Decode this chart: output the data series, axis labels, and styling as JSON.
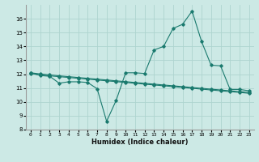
{
  "xlabel": "Humidex (Indice chaleur)",
  "xlim": [
    -0.5,
    23.5
  ],
  "ylim": [
    8,
    17
  ],
  "yticks": [
    8,
    9,
    10,
    11,
    12,
    13,
    14,
    15,
    16
  ],
  "xticks": [
    0,
    1,
    2,
    3,
    4,
    5,
    6,
    7,
    8,
    9,
    10,
    11,
    12,
    13,
    14,
    15,
    16,
    17,
    18,
    19,
    20,
    21,
    22,
    23
  ],
  "bg_color": "#cce9e5",
  "line_color": "#1a7a6e",
  "grid_color": "#aed4cf",
  "line1_x": [
    0,
    1,
    2,
    3,
    4,
    5,
    6,
    7,
    8,
    9,
    10,
    11,
    12,
    13,
    14,
    15,
    16,
    17,
    18,
    19,
    20,
    21,
    22,
    23
  ],
  "line1_y": [
    12.1,
    11.9,
    11.85,
    11.35,
    11.45,
    11.45,
    11.4,
    10.95,
    8.6,
    10.1,
    12.1,
    12.1,
    12.05,
    13.75,
    14.0,
    15.3,
    15.6,
    16.55,
    14.35,
    12.65,
    12.6,
    10.9,
    10.9,
    10.8
  ],
  "line2_x": [
    0,
    1,
    2,
    3,
    4,
    5,
    6,
    7,
    8,
    9,
    10,
    11,
    12,
    13,
    14,
    15,
    16,
    17,
    18,
    19,
    20,
    21,
    22,
    23
  ],
  "line2_y": [
    12.05,
    11.95,
    11.88,
    11.82,
    11.76,
    11.7,
    11.64,
    11.58,
    11.52,
    11.46,
    11.4,
    11.34,
    11.28,
    11.22,
    11.16,
    11.1,
    11.04,
    10.98,
    10.92,
    10.86,
    10.8,
    10.74,
    10.68,
    10.62
  ],
  "line3_x": [
    0,
    1,
    2,
    3,
    4,
    5,
    6,
    7,
    8,
    9,
    10,
    11,
    12,
    13,
    14,
    15,
    16,
    17,
    18,
    19,
    20,
    21,
    22,
    23
  ],
  "line3_y": [
    12.1,
    12.02,
    11.95,
    11.88,
    11.82,
    11.76,
    11.7,
    11.64,
    11.58,
    11.52,
    11.46,
    11.4,
    11.34,
    11.28,
    11.22,
    11.16,
    11.1,
    11.04,
    10.98,
    10.92,
    10.86,
    10.8,
    10.74,
    10.68
  ]
}
